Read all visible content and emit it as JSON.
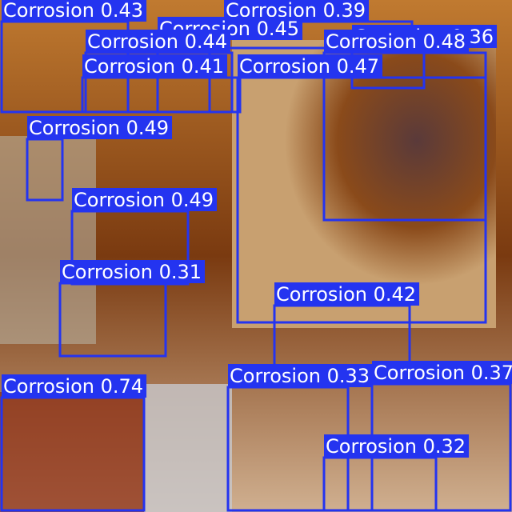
{
  "detections": [
    {
      "label": "Corrosion 0.43"
    },
    {
      "label": "Corrosion 0.39"
    },
    {
      "label": "Corrosion 0.36"
    },
    {
      "label": "Corrosion 0.45"
    },
    {
      "label": "Corrosion 0.44"
    },
    {
      "label": "Corrosion 0.48"
    },
    {
      "label": "Corrosion 0.41"
    },
    {
      "label": "Corrosion 0.49"
    },
    {
      "label": "Corrosion 0.47"
    },
    {
      "label": "Corrosion 0.49"
    },
    {
      "label": "Corrosion 0.31"
    },
    {
      "label": "Corrosion 0.42"
    },
    {
      "label": "Corrosion 0.33"
    },
    {
      "label": "Corrosion 0.37"
    },
    {
      "label": "Corrosion 0.74"
    },
    {
      "label": "Corrosion 0.32"
    }
  ]
}
